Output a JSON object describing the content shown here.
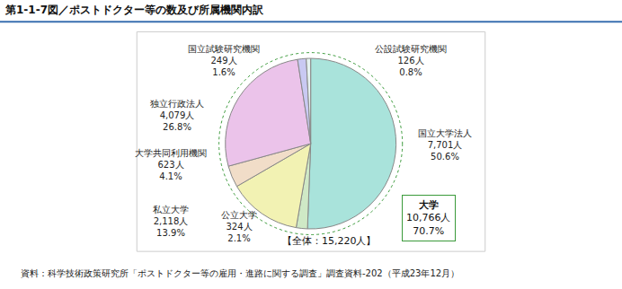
{
  "chart_data": {
    "type": "pie",
    "title": "第1-1-7図／ポストドクター等の数及び所属機関内訳",
    "categories": [
      "国立大学法人",
      "公立大学",
      "私立大学",
      "大学共同利用機関",
      "独立行政法人",
      "国立試験研究機関",
      "公設試験研究機関"
    ],
    "values": [
      7701,
      324,
      2118,
      623,
      4079,
      249,
      126
    ],
    "value_labels": [
      "7,701人",
      "324人",
      "2,118人",
      "623人",
      "4,079人",
      "249人",
      "126人"
    ],
    "percent_labels": [
      "50.6%",
      "2.1%",
      "13.9%",
      "4.1%",
      "26.8%",
      "1.6%",
      "0.8%"
    ],
    "colors": [
      "#a9e3db",
      "#cfe9c6",
      "#f2f2b3",
      "#f1ddc8",
      "#ebc3ea",
      "#c9c9f2",
      "#e6f2f0"
    ],
    "group": {
      "label": "大学",
      "value_label": "10,766人",
      "percent_label": "70.7%"
    },
    "total_label": "【全体：15,220人】",
    "source": "資料：科学技術政策研究所「ポストドクター等の雇用・進路に関する調査」調査資料-202（平成23年12月）",
    "data_labels": true
  }
}
